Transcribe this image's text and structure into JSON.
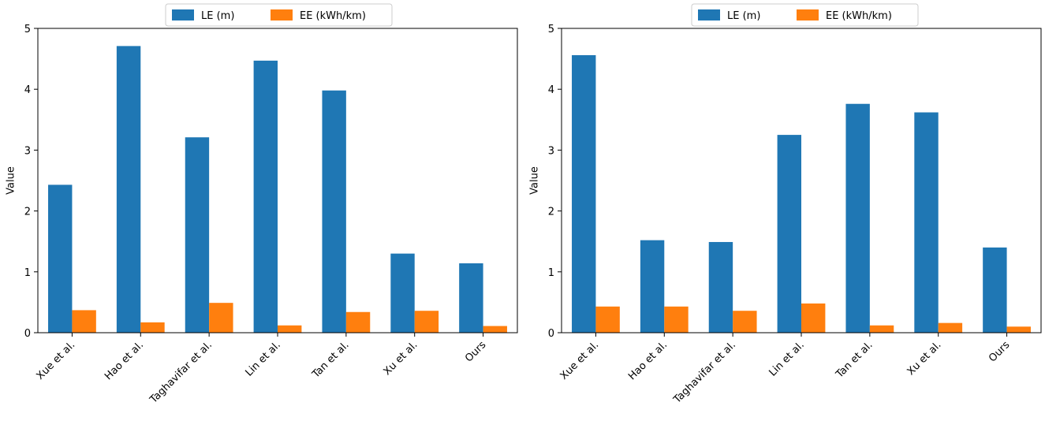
{
  "chart_data": [
    {
      "type": "bar",
      "categories": [
        "Xue et al.",
        "Hao et al.",
        "Taghavifar et al.",
        "Lin et al.",
        "Tan et al.",
        "Xu et al.",
        "Ours"
      ],
      "series": [
        {
          "name": "LE (m)",
          "color": "#1f77b4",
          "values": [
            2.43,
            4.71,
            3.21,
            4.47,
            3.98,
            1.3,
            1.14
          ]
        },
        {
          "name": "EE (kWh/km)",
          "color": "#ff7f0e",
          "values": [
            0.37,
            0.17,
            0.49,
            0.12,
            0.34,
            0.36,
            0.11
          ]
        }
      ],
      "ylabel": "Value",
      "xlabel": "",
      "ylim": [
        0,
        5
      ],
      "yticks": [
        "0",
        "1",
        "2",
        "3",
        "4",
        "5"
      ],
      "legend": "top-center"
    },
    {
      "type": "bar",
      "categories": [
        "Xue et al.",
        "Hao et al.",
        "Taghavifar et al.",
        "Lin et al.",
        "Tan et al.",
        "Xu et al.",
        "Ours"
      ],
      "series": [
        {
          "name": "LE (m)",
          "color": "#1f77b4",
          "values": [
            4.56,
            1.52,
            1.49,
            3.25,
            3.76,
            3.62,
            1.4
          ]
        },
        {
          "name": "EE (kWh/km)",
          "color": "#ff7f0e",
          "values": [
            0.43,
            0.43,
            0.36,
            0.48,
            0.12,
            0.16,
            0.1
          ]
        }
      ],
      "ylabel": "Value",
      "xlabel": "",
      "ylim": [
        0,
        5
      ],
      "yticks": [
        "0",
        "1",
        "2",
        "3",
        "4",
        "5"
      ],
      "legend": "top-center"
    }
  ]
}
